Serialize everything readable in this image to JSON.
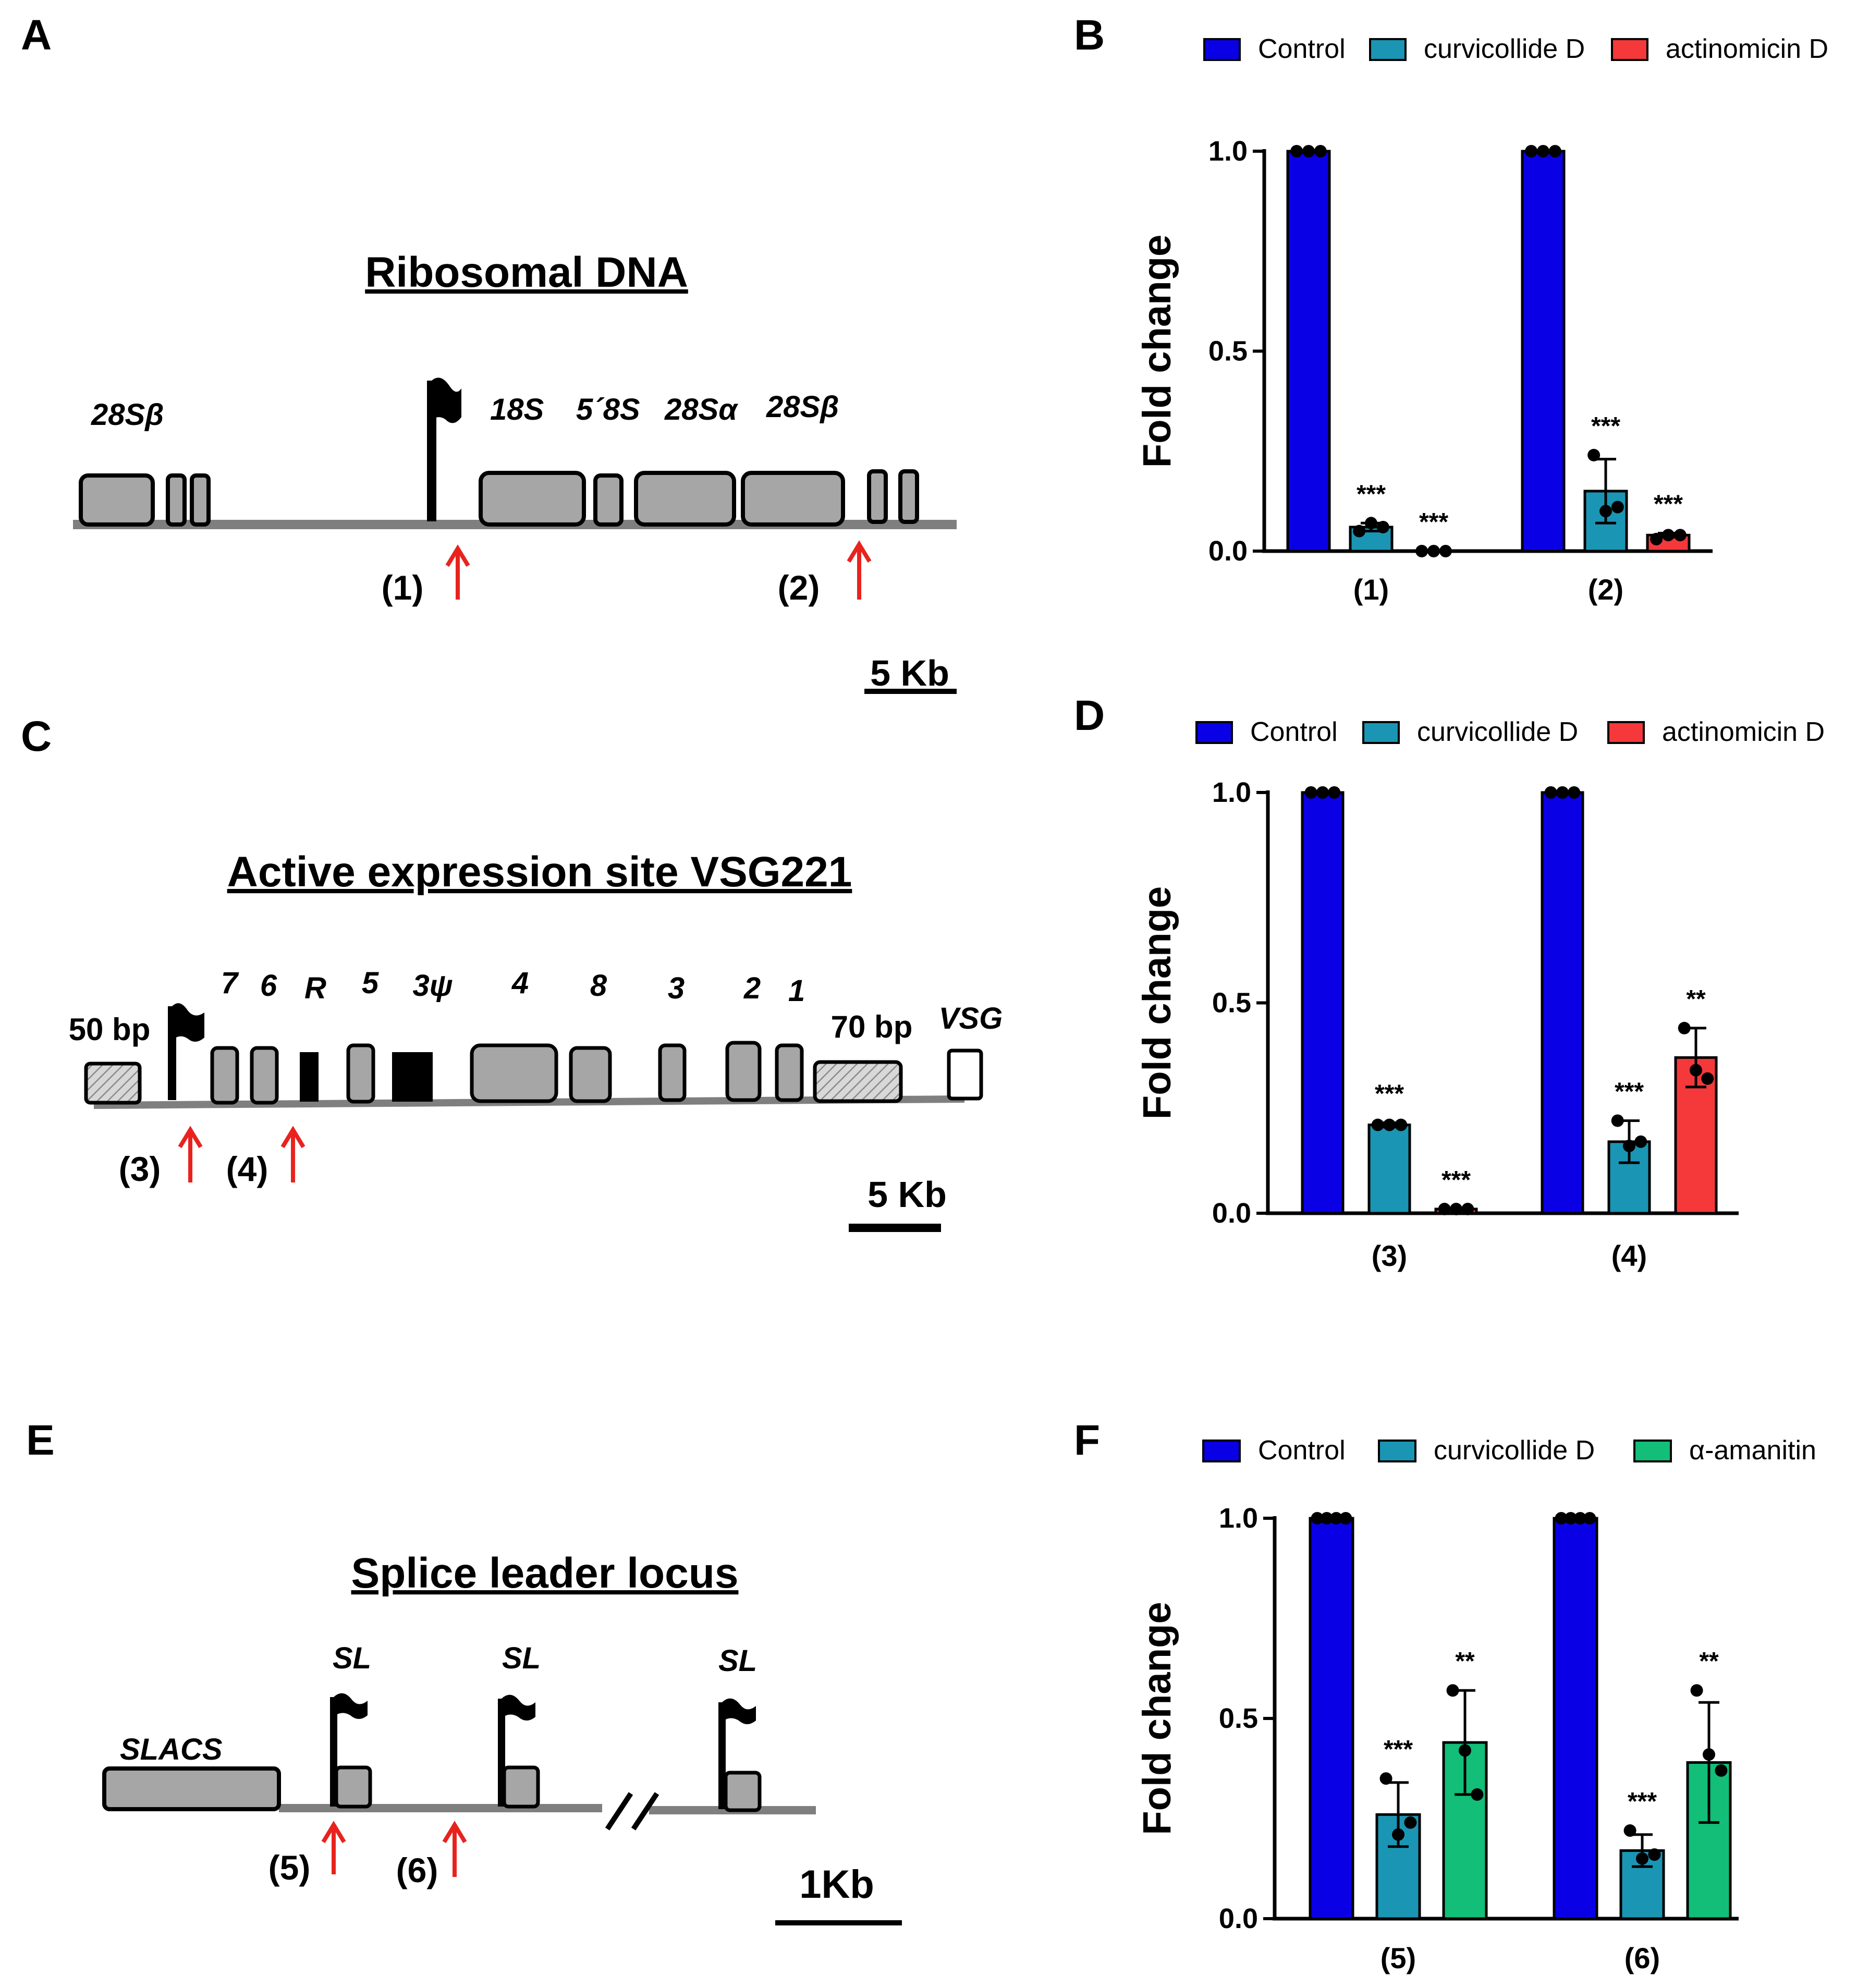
{
  "panels": {
    "A": {
      "letter": "A",
      "title": "Ribosomal DNA",
      "labels": {
        "l28sb_left": "28Sβ",
        "l18s": "18S",
        "l58s": "5´8S",
        "l28sa": "28Sα",
        "l28sb_right": "28Sβ"
      },
      "sites": [
        "(1)",
        "(2)"
      ],
      "scale": "5 Kb"
    },
    "C": {
      "letter": "C",
      "title": "Active expression site VSG221",
      "labels": {
        "g7": "7",
        "g6": "6",
        "gR": "R",
        "g5": "5",
        "g3psi": "3ψ",
        "g4": "4",
        "g8": "8",
        "g3": "3",
        "g2": "2",
        "g1": "1",
        "bp50": "50 bp",
        "bp70": "70 bp",
        "vsg": "VSG"
      },
      "sites": [
        "(3)",
        "(4)"
      ],
      "scale": "5 Kb"
    },
    "E": {
      "letter": "E",
      "title": "Splice leader locus",
      "labels": {
        "slacs": "SLACS",
        "sl": "SL"
      },
      "sites": [
        "(5)",
        "(6)"
      ],
      "scale": "1Kb"
    },
    "B": {
      "letter": "B"
    },
    "D": {
      "letter": "D"
    },
    "F": {
      "letter": "F"
    }
  },
  "colors": {
    "control": "#0A00E6",
    "curvicollide": "#1A96B4",
    "actinomicin": "#F5383A",
    "amanitin": "#12BE78",
    "arrow": "#E8231E",
    "gene": "#A6A6A6"
  },
  "chart_data": [
    {
      "panel": "B",
      "type": "bar",
      "ylabel": "Fold change",
      "ylim": [
        0,
        1.0
      ],
      "yticks": [
        "0.0",
        "0.5",
        "1.0"
      ],
      "categories": [
        "(1)",
        "(2)"
      ],
      "series": [
        {
          "name": "Control",
          "color_key": "control",
          "values": [
            1.0,
            1.0
          ],
          "err": [
            0,
            0
          ],
          "points": [
            [
              1,
              1,
              1
            ],
            [
              1,
              1,
              1
            ]
          ],
          "sig": [
            "",
            ""
          ]
        },
        {
          "name": "curvicollide D",
          "color_key": "curvicollide",
          "values": [
            0.06,
            0.15
          ],
          "err": [
            0.01,
            0.08
          ],
          "points": [
            [
              0.05,
              0.07,
              0.06
            ],
            [
              0.24,
              0.1,
              0.11
            ]
          ],
          "sig": [
            "***",
            "***"
          ]
        },
        {
          "name": "actinomicin D",
          "color_key": "actinomicin",
          "values": [
            0.0,
            0.04
          ],
          "err": [
            0,
            0.005
          ],
          "points": [
            [
              0,
              0,
              0
            ],
            [
              0.03,
              0.04,
              0.04
            ]
          ],
          "sig": [
            "***",
            "***"
          ]
        }
      ]
    },
    {
      "panel": "D",
      "type": "bar",
      "ylabel": "Fold change",
      "ylim": [
        0,
        1.0
      ],
      "yticks": [
        "0.0",
        "0.5",
        "1.0"
      ],
      "categories": [
        "(3)",
        "(4)"
      ],
      "series": [
        {
          "name": "Control",
          "color_key": "control",
          "values": [
            1.0,
            1.0
          ],
          "err": [
            0,
            0
          ],
          "points": [
            [
              1,
              1,
              1
            ],
            [
              1,
              1,
              1
            ]
          ],
          "sig": [
            "",
            ""
          ]
        },
        {
          "name": "curvicollide D",
          "color_key": "curvicollide",
          "values": [
            0.21,
            0.17
          ],
          "err": [
            0.005,
            0.05
          ],
          "points": [
            [
              0.21,
              0.21,
              0.21
            ],
            [
              0.22,
              0.16,
              0.17
            ]
          ],
          "sig": [
            "***",
            "***"
          ]
        },
        {
          "name": "actinomicin D",
          "color_key": "actinomicin",
          "values": [
            0.01,
            0.37
          ],
          "err": [
            0,
            0.07
          ],
          "points": [
            [
              0.01,
              0.01,
              0.01
            ],
            [
              0.44,
              0.34,
              0.32
            ]
          ],
          "sig": [
            "***",
            "**"
          ]
        }
      ]
    },
    {
      "panel": "F",
      "type": "bar",
      "ylabel": "Fold change",
      "ylim": [
        0,
        1.0
      ],
      "yticks": [
        "0.0",
        "0.5",
        "1.0"
      ],
      "categories": [
        "(5)",
        "(6)"
      ],
      "series": [
        {
          "name": "Control",
          "color_key": "control",
          "values": [
            1.0,
            1.0
          ],
          "err": [
            0,
            0
          ],
          "points": [
            [
              1,
              1,
              1,
              1
            ],
            [
              1,
              1,
              1,
              1
            ]
          ],
          "sig": [
            "",
            ""
          ]
        },
        {
          "name": "curvicollide D",
          "color_key": "curvicollide",
          "values": [
            0.26,
            0.17
          ],
          "err": [
            0.08,
            0.04
          ],
          "points": [
            [
              0.35,
              0.21,
              0.24
            ],
            [
              0.22,
              0.15,
              0.16
            ]
          ],
          "sig": [
            "***",
            "***"
          ]
        },
        {
          "name": "α-amanitin",
          "color_key": "amanitin",
          "values": [
            0.44,
            0.39
          ],
          "err": [
            0.13,
            0.15
          ],
          "points": [
            [
              0.57,
              0.42,
              0.31
            ],
            [
              0.57,
              0.41,
              0.37
            ]
          ],
          "sig": [
            "**",
            "**"
          ]
        }
      ]
    }
  ]
}
